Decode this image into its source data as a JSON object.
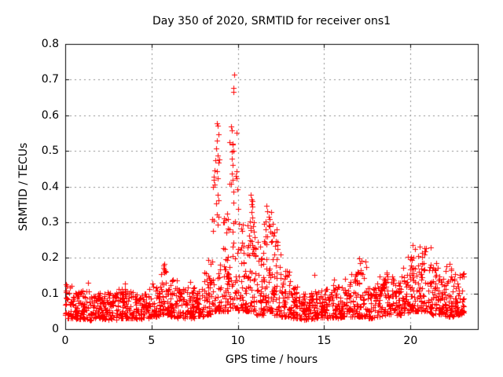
{
  "chart_data": {
    "type": "scatter",
    "title": "Day 350 of 2020, SRMTID for receiver ons1",
    "xlabel": "GPS time / hours",
    "ylabel": "SRMTID / TECUs",
    "xlim": [
      0,
      23.9
    ],
    "ylim": [
      0,
      0.8
    ],
    "xticks": [
      {
        "v": 0,
        "label": "0"
      },
      {
        "v": 5,
        "label": "5"
      },
      {
        "v": 10,
        "label": "10"
      },
      {
        "v": 15,
        "label": "15"
      },
      {
        "v": 20,
        "label": "20"
      }
    ],
    "yticks": [
      {
        "v": 0.0,
        "label": "0"
      },
      {
        "v": 0.1,
        "label": "0.1"
      },
      {
        "v": 0.2,
        "label": "0.2"
      },
      {
        "v": 0.3,
        "label": "0.3"
      },
      {
        "v": 0.4,
        "label": "0.4"
      },
      {
        "v": 0.5,
        "label": "0.5"
      },
      {
        "v": 0.6,
        "label": "0.6"
      },
      {
        "v": 0.7,
        "label": "0.7"
      },
      {
        "v": 0.8,
        "label": "0.8"
      }
    ],
    "grid": "dashed",
    "legend": "none",
    "marker": {
      "shape": "plus",
      "color": "#ff0000",
      "size": 7
    },
    "frame_color": "#000000",
    "grid_color": "#8c8c8c",
    "seed": 350,
    "band_bins": [
      [
        0.0,
        0.5,
        0.03,
        0.122,
        40,
        1.5
      ],
      [
        0.5,
        1.0,
        0.028,
        0.105,
        40,
        1.4
      ],
      [
        1.0,
        1.5,
        0.025,
        0.112,
        40,
        1.4
      ],
      [
        1.5,
        2.0,
        0.03,
        0.1,
        40,
        1.4
      ],
      [
        2.0,
        2.5,
        0.028,
        0.104,
        40,
        1.4
      ],
      [
        2.5,
        3.0,
        0.025,
        0.106,
        40,
        1.4
      ],
      [
        3.0,
        3.5,
        0.03,
        0.114,
        40,
        1.4
      ],
      [
        3.5,
        4.0,
        0.03,
        0.108,
        40,
        1.4
      ],
      [
        4.0,
        4.5,
        0.028,
        0.1,
        40,
        1.4
      ],
      [
        4.5,
        5.0,
        0.03,
        0.112,
        40,
        1.4
      ],
      [
        5.0,
        5.5,
        0.035,
        0.128,
        42,
        1.5
      ],
      [
        5.5,
        6.0,
        0.04,
        0.18,
        44,
        1.7
      ],
      [
        6.0,
        6.5,
        0.035,
        0.138,
        42,
        1.6
      ],
      [
        6.5,
        7.0,
        0.03,
        0.112,
        40,
        1.4
      ],
      [
        7.0,
        7.5,
        0.03,
        0.118,
        40,
        1.4
      ],
      [
        7.5,
        8.0,
        0.035,
        0.128,
        40,
        1.5
      ],
      [
        8.0,
        8.5,
        0.04,
        0.168,
        42,
        1.7
      ],
      [
        8.5,
        9.0,
        0.05,
        0.5,
        46,
        2.7
      ],
      [
        9.0,
        9.5,
        0.05,
        0.32,
        46,
        2.3
      ],
      [
        9.5,
        10.0,
        0.06,
        0.55,
        48,
        2.5
      ],
      [
        10.0,
        10.5,
        0.05,
        0.31,
        46,
        2.1
      ],
      [
        10.5,
        11.0,
        0.05,
        0.36,
        48,
        2.3
      ],
      [
        11.0,
        11.5,
        0.04,
        0.25,
        44,
        2.0
      ],
      [
        11.5,
        12.0,
        0.05,
        0.33,
        48,
        2.2
      ],
      [
        12.0,
        12.5,
        0.04,
        0.28,
        44,
        2.1
      ],
      [
        12.5,
        13.0,
        0.035,
        0.165,
        42,
        1.7
      ],
      [
        13.0,
        13.5,
        0.03,
        0.12,
        40,
        1.5
      ],
      [
        13.5,
        14.0,
        0.025,
        0.1,
        40,
        1.4
      ],
      [
        14.0,
        14.5,
        0.028,
        0.108,
        40,
        1.4
      ],
      [
        14.5,
        15.0,
        0.03,
        0.112,
        40,
        1.4
      ],
      [
        15.0,
        15.5,
        0.03,
        0.118,
        40,
        1.5
      ],
      [
        15.5,
        16.0,
        0.03,
        0.124,
        40,
        1.5
      ],
      [
        16.0,
        16.5,
        0.035,
        0.13,
        40,
        1.5
      ],
      [
        16.5,
        17.0,
        0.035,
        0.16,
        42,
        1.6
      ],
      [
        17.0,
        17.5,
        0.035,
        0.195,
        42,
        1.8
      ],
      [
        17.5,
        18.0,
        0.03,
        0.124,
        40,
        1.5
      ],
      [
        18.0,
        18.5,
        0.035,
        0.142,
        40,
        1.5
      ],
      [
        18.5,
        19.0,
        0.04,
        0.16,
        42,
        1.6
      ],
      [
        19.0,
        19.5,
        0.04,
        0.148,
        42,
        1.5
      ],
      [
        19.5,
        20.0,
        0.045,
        0.172,
        44,
        1.6
      ],
      [
        20.0,
        20.5,
        0.05,
        0.215,
        46,
        1.7
      ],
      [
        20.5,
        21.0,
        0.05,
        0.228,
        46,
        1.7
      ],
      [
        21.0,
        21.5,
        0.04,
        0.182,
        44,
        1.6
      ],
      [
        21.5,
        22.0,
        0.035,
        0.148,
        42,
        1.5
      ],
      [
        22.0,
        22.5,
        0.035,
        0.18,
        42,
        1.6
      ],
      [
        22.5,
        23.1,
        0.04,
        0.158,
        50,
        1.5
      ]
    ],
    "peak_points": [
      [
        9.77,
        0.714
      ],
      [
        9.73,
        0.677
      ],
      [
        9.74,
        0.665
      ],
      [
        8.78,
        0.578
      ],
      [
        8.83,
        0.571
      ],
      [
        8.86,
        0.546
      ],
      [
        8.8,
        0.528
      ],
      [
        9.62,
        0.568
      ],
      [
        9.66,
        0.557
      ],
      [
        8.76,
        0.506
      ],
      [
        8.82,
        0.488
      ],
      [
        8.87,
        0.467
      ],
      [
        9.63,
        0.497
      ],
      [
        9.67,
        0.478
      ],
      [
        9.7,
        0.461
      ],
      [
        8.79,
        0.443
      ],
      [
        8.85,
        0.424
      ],
      [
        9.65,
        0.437
      ],
      [
        9.71,
        0.419
      ],
      [
        9.6,
        0.407
      ],
      [
        9.76,
        0.386
      ],
      [
        8.81,
        0.377
      ],
      [
        8.88,
        0.361
      ],
      [
        8.74,
        0.352
      ],
      [
        9.36,
        0.325
      ],
      [
        9.29,
        0.306
      ],
      [
        9.2,
        0.299
      ],
      [
        9.44,
        0.283
      ],
      [
        10.74,
        0.376
      ],
      [
        10.79,
        0.363
      ],
      [
        10.84,
        0.344
      ],
      [
        10.77,
        0.329
      ],
      [
        10.82,
        0.314
      ],
      [
        10.7,
        0.301
      ],
      [
        10.88,
        0.289
      ],
      [
        10.92,
        0.274
      ],
      [
        10.95,
        0.258
      ],
      [
        11.64,
        0.346
      ],
      [
        11.71,
        0.331
      ],
      [
        11.77,
        0.316
      ],
      [
        11.6,
        0.302
      ],
      [
        11.84,
        0.289
      ],
      [
        11.9,
        0.273
      ],
      [
        11.7,
        0.259
      ],
      [
        11.95,
        0.246
      ],
      [
        12.04,
        0.296
      ],
      [
        12.1,
        0.271
      ],
      [
        12.19,
        0.247
      ],
      [
        12.3,
        0.224
      ],
      [
        5.73,
        0.182
      ],
      [
        5.69,
        0.171
      ],
      [
        5.79,
        0.163
      ],
      [
        8.3,
        0.195
      ],
      [
        8.4,
        0.182
      ],
      [
        14.45,
        0.151
      ],
      [
        16.92,
        0.161
      ],
      [
        17.04,
        0.198
      ],
      [
        17.09,
        0.186
      ],
      [
        18.62,
        0.158
      ],
      [
        19.83,
        0.203
      ],
      [
        20.12,
        0.235
      ],
      [
        20.28,
        0.225
      ],
      [
        20.55,
        0.232
      ],
      [
        20.65,
        0.214
      ],
      [
        20.45,
        0.206
      ],
      [
        21.18,
        0.229
      ],
      [
        22.28,
        0.182
      ],
      [
        22.33,
        0.17
      ],
      [
        23.02,
        0.155
      ],
      [
        23.08,
        0.148
      ],
      [
        0.05,
        0.126
      ],
      [
        1.32,
        0.131
      ],
      [
        3.45,
        0.128
      ],
      [
        7.25,
        0.133
      ],
      [
        13.0,
        0.135
      ],
      [
        15.55,
        0.138
      ],
      [
        16.2,
        0.142
      ],
      [
        18.2,
        0.147
      ],
      [
        21.5,
        0.186
      ],
      [
        21.6,
        0.172
      ]
    ]
  }
}
